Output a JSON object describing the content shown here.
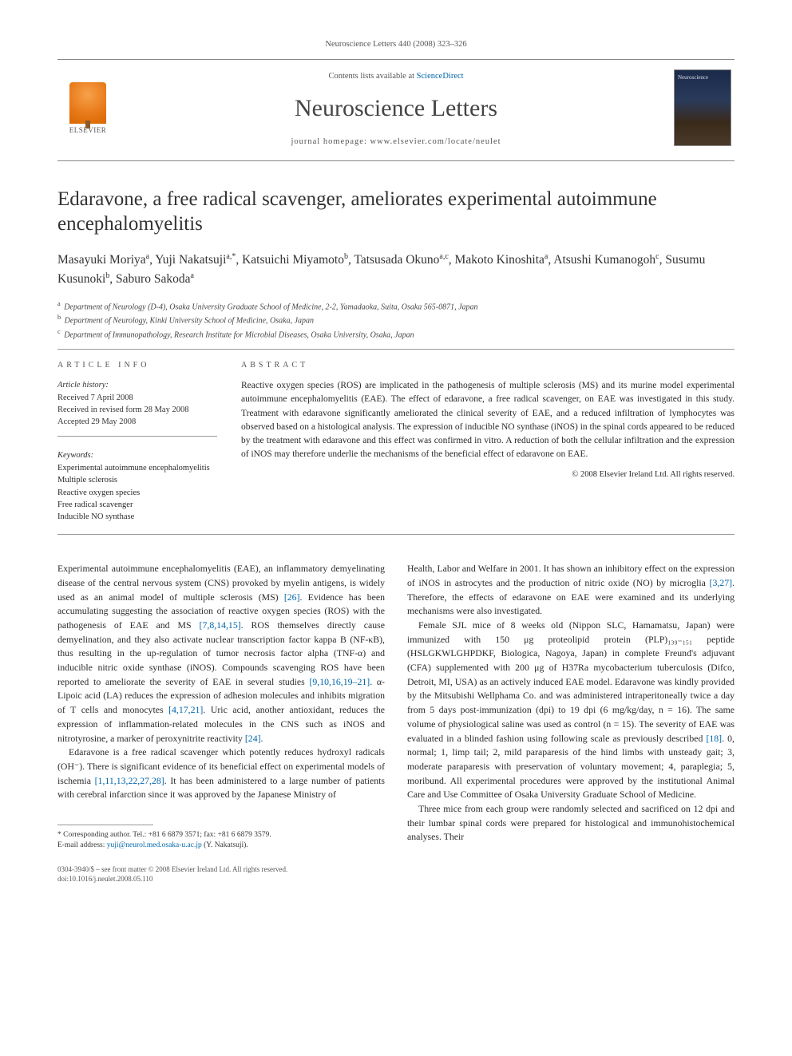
{
  "page_header": "Neuroscience Letters 440 (2008) 323–326",
  "banner": {
    "contents_prefix": "Contents lists available at ",
    "contents_link": "ScienceDirect",
    "journal_name": "Neuroscience Letters",
    "homepage_prefix": "journal homepage: ",
    "homepage_url": "www.elsevier.com/locate/neulet",
    "publisher": "ELSEVIER"
  },
  "article": {
    "title": "Edaravone, a free radical scavenger, ameliorates experimental autoimmune encephalomyelitis",
    "authors_html": "Masayuki Moriya<sup>a</sup>, Yuji Nakatsuji<sup>a,*</sup>, Katsuichi Miyamoto<sup>b</sup>, Tatsusada Okuno<sup>a,c</sup>, Makoto Kinoshita<sup>a</sup>, Atsushi Kumanogoh<sup>c</sup>, Susumu Kusunoki<sup>b</sup>, Saburo Sakoda<sup>a</sup>",
    "affiliations": [
      {
        "sup": "a",
        "text": "Department of Neurology (D-4), Osaka University Graduate School of Medicine, 2-2, Yamadaoka, Suita, Osaka 565-0871, Japan"
      },
      {
        "sup": "b",
        "text": "Department of Neurology, Kinki University School of Medicine, Osaka, Japan"
      },
      {
        "sup": "c",
        "text": "Department of Immunopathology, Research Institute for Microbial Diseases, Osaka University, Osaka, Japan"
      }
    ]
  },
  "info": {
    "heading": "ARTICLE INFO",
    "history_label": "Article history:",
    "received": "Received 7 April 2008",
    "revised": "Received in revised form 28 May 2008",
    "accepted": "Accepted 29 May 2008",
    "keywords_label": "Keywords:",
    "keywords": [
      "Experimental autoimmune encephalomyelitis",
      "Multiple sclerosis",
      "Reactive oxygen species",
      "Free radical scavenger",
      "Inducible NO synthase"
    ]
  },
  "abstract": {
    "heading": "ABSTRACT",
    "text": "Reactive oxygen species (ROS) are implicated in the pathogenesis of multiple sclerosis (MS) and its murine model experimental autoimmune encephalomyelitis (EAE). The effect of edaravone, a free radical scavenger, on EAE was investigated in this study. Treatment with edaravone significantly ameliorated the clinical severity of EAE, and a reduced infiltration of lymphocytes was observed based on a histological analysis. The expression of inducible NO synthase (iNOS) in the spinal cords appeared to be reduced by the treatment with edaravone and this effect was confirmed in vitro. A reduction of both the cellular infiltration and the expression of iNOS may therefore underlie the mechanisms of the beneficial effect of edaravone on EAE.",
    "copyright": "© 2008 Elsevier Ireland Ltd. All rights reserved."
  },
  "body": {
    "p1": "Experimental autoimmune encephalomyelitis (EAE), an inflammatory demyelinating disease of the central nervous system (CNS) provoked by myelin antigens, is widely used as an animal model of multiple sclerosis (MS) [26]. Evidence has been accumulating suggesting the association of reactive oxygen species (ROS) with the pathogenesis of EAE and MS [7,8,14,15]. ROS themselves directly cause demyelination, and they also activate nuclear transcription factor kappa B (NF-κB), thus resulting in the up-regulation of tumor necrosis factor alpha (TNF-α) and inducible nitric oxide synthase (iNOS). Compounds scavenging ROS have been reported to ameliorate the severity of EAE in several studies [9,10,16,19–21]. α-Lipoic acid (LA) reduces the expression of adhesion molecules and inhibits migration of T cells and monocytes [4,17,21]. Uric acid, another antioxidant, reduces the expression of inflammation-related molecules in the CNS such as iNOS and nitrotyrosine, a marker of peroxynitrite reactivity [24].",
    "p2": "Edaravone is a free radical scavenger which potently reduces hydroxyl radicals (OH⁻). There is significant evidence of its beneficial effect on experimental models of ischemia [1,11,13,22,27,28]. It has been administered to a large number of patients with cerebral infarction since it was approved by the Japanese Ministry of",
    "p3": "Health, Labor and Welfare in 2001. It has shown an inhibitory effect on the expression of iNOS in astrocytes and the production of nitric oxide (NO) by microglia [3,27]. Therefore, the effects of edaravone on EAE were examined and its underlying mechanisms were also investigated.",
    "p4": "Female SJL mice of 8 weeks old (Nippon SLC, Hamamatsu, Japan) were immunized with 150 μg proteolipid protein (PLP)₁₃₉₋₁₅₁ peptide (HSLGKWLGHPDKF, Biologica, Nagoya, Japan) in complete Freund's adjuvant (CFA) supplemented with 200 μg of H37Ra mycobacterium tuberculosis (Difco, Detroit, MI, USA) as an actively induced EAE model. Edaravone was kindly provided by the Mitsubishi Wellphama Co. and was administered intraperitoneally twice a day from 5 days post-immunization (dpi) to 19 dpi (6 mg/kg/day, n = 16). The same volume of physiological saline was used as control (n = 15). The severity of EAE was evaluated in a blinded fashion using following scale as previously described [18]. 0, normal; 1, limp tail; 2, mild paraparesis of the hind limbs with unsteady gait; 3, moderate paraparesis with preservation of voluntary movement; 4, paraplegia; 5, moribund. All experimental procedures were approved by the institutional Animal Care and Use Committee of Osaka University Graduate School of Medicine.",
    "p5": "Three mice from each group were randomly selected and sacrificed on 12 dpi and their lumbar spinal cords were prepared for histological and immunohistochemical analyses. Their"
  },
  "footnote": {
    "corr": "* Corresponding author. Tel.: +81 6 6879 3571; fax: +81 6 6879 3579.",
    "email_label": "E-mail address: ",
    "email": "yuji@neurol.med.osaka-u.ac.jp",
    "email_suffix": " (Y. Nakatsuji)."
  },
  "footer": {
    "issn": "0304-3940/$ – see front matter © 2008 Elsevier Ireland Ltd. All rights reserved.",
    "doi": "doi:10.1016/j.neulet.2008.05.110"
  },
  "colors": {
    "link": "#0066aa",
    "text": "#2a2a2a",
    "rule": "#999999",
    "elsevier_orange": "#e77817"
  },
  "typography": {
    "title_fontsize_pt": 19,
    "journal_fontsize_pt": 23,
    "body_fontsize_pt": 9,
    "abstract_fontsize_pt": 8.7,
    "font_family": "Georgia serif"
  }
}
